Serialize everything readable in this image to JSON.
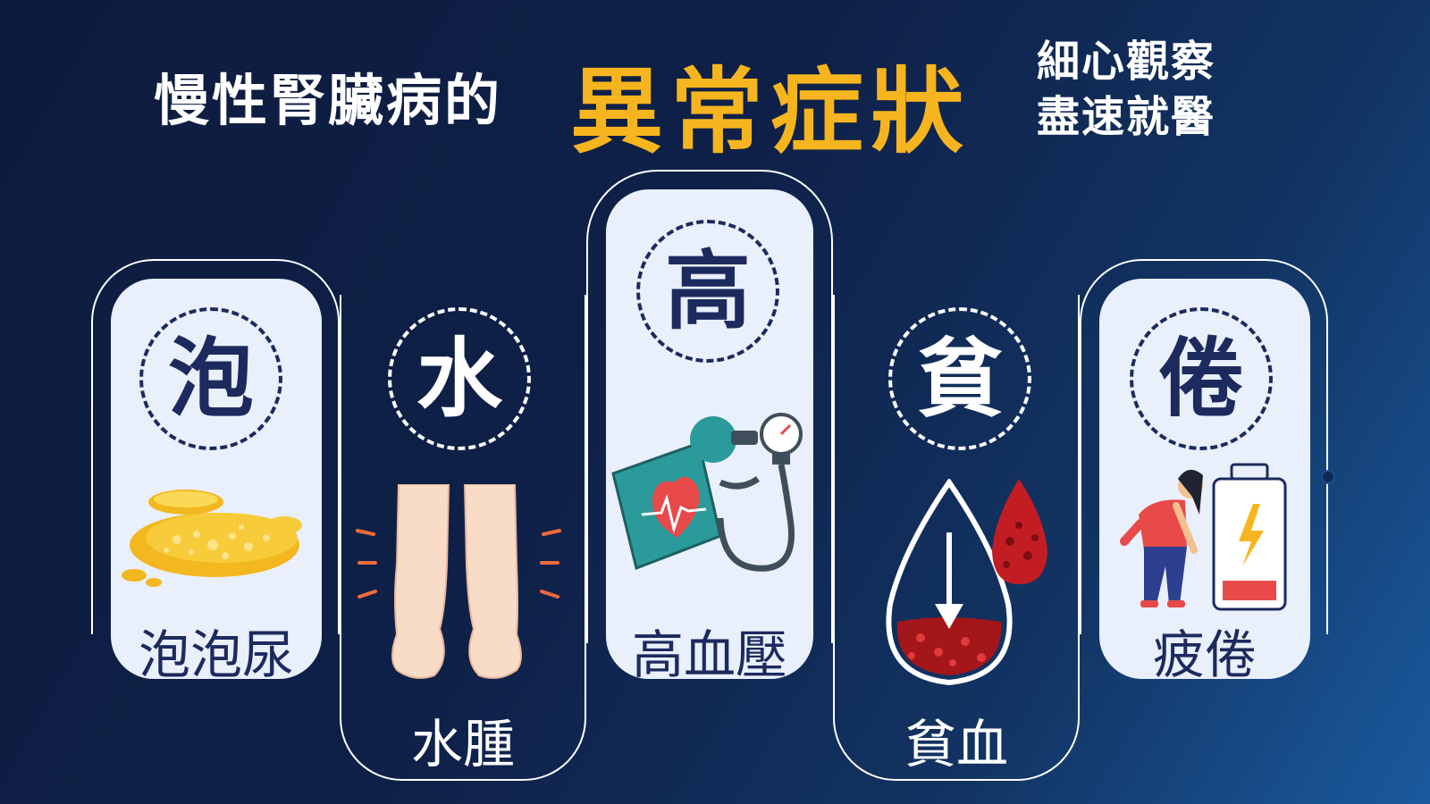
{
  "title": {
    "main": "慢性腎臟病的",
    "accent": "異常症狀",
    "side_line1": "細心觀察",
    "side_line2": "盡速就醫"
  },
  "symptoms": [
    {
      "char": "泡",
      "label": "泡泡尿",
      "icon": "foamy-urine-puddle-icon"
    },
    {
      "char": "水",
      "label": "水腫",
      "icon": "swollen-legs-icon"
    },
    {
      "char": "高",
      "label": "高血壓",
      "icon": "blood-pressure-monitor-icon"
    },
    {
      "char": "貧",
      "label": "貧血",
      "icon": "anemia-blood-drop-icon"
    },
    {
      "char": "倦",
      "label": "疲倦",
      "icon": "fatigue-low-battery-icon"
    }
  ],
  "colors": {
    "accent": "#f6b51e",
    "navy_text": "#1d2a5e",
    "card_bg": "#e9f0fb",
    "background_dark": "#0d1b3d",
    "background_light": "#1a5a9e"
  }
}
